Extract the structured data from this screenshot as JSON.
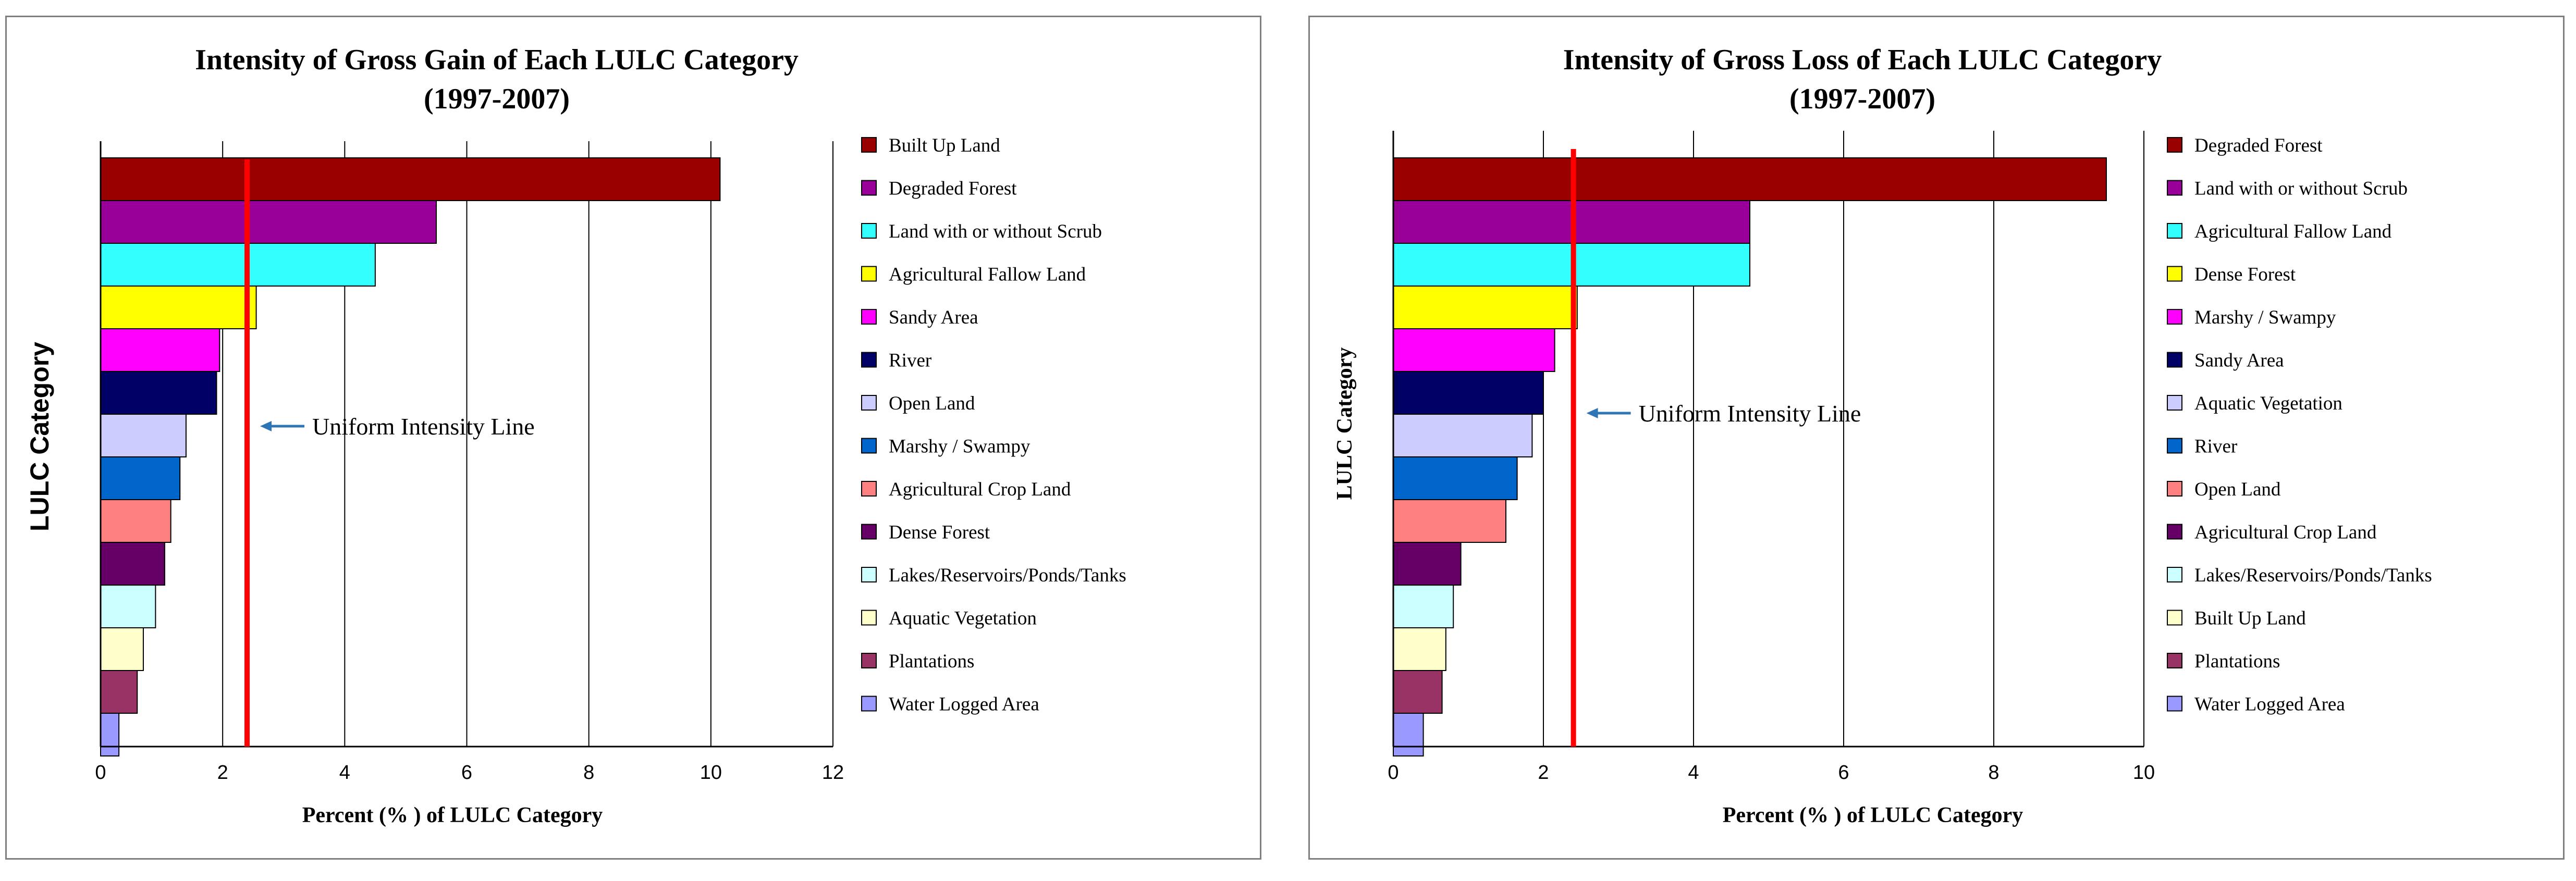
{
  "chart_data": [
    {
      "type": "bar",
      "orientation": "horizontal",
      "title": "Intensity of Gross Gain of Each LULC Category",
      "subtitle": "(1997-2007)",
      "xlabel": "Percent (% ) of LULC Category",
      "ylabel": "LULC Category",
      "xlim": [
        0,
        12
      ],
      "xticks": [
        "0",
        "2",
        "4",
        "6",
        "8",
        "10",
        "12"
      ],
      "uniform_intensity": 2.4,
      "annotation": "Uniform Intensity Line",
      "categories": [
        "Built Up Land",
        "Degraded Forest",
        "Land with or without Scrub",
        "Agricultural Fallow Land",
        "Sandy Area",
        "River",
        "Open Land",
        "Marshy / Swampy",
        "Agricultural Crop Land",
        "Dense Forest",
        "Lakes/Reservoirs/Ponds/Tanks",
        "Aquatic Vegetation",
        "Plantations",
        "Water Logged Area"
      ],
      "values": [
        10.15,
        5.5,
        4.5,
        2.55,
        1.95,
        1.9,
        1.4,
        1.3,
        1.15,
        1.05,
        0.9,
        0.7,
        0.6,
        0.3
      ],
      "colors": [
        "#990000",
        "#990099",
        "#33FFFF",
        "#FFFF00",
        "#FF00FF",
        "#000066",
        "#CCCCFF",
        "#0066CC",
        "#FF8080",
        "#660066",
        "#CCFFFF",
        "#FFFFCC",
        "#993366",
        "#9999FF"
      ],
      "grid": true,
      "legend": "right"
    },
    {
      "type": "bar",
      "orientation": "horizontal",
      "title": "Intensity of Gross Loss of Each LULC Category",
      "subtitle": "(1997-2007)",
      "xlabel": "Percent (% ) of LULC Category",
      "ylabel": "LULC Category",
      "xlim": [
        0,
        10
      ],
      "xticks": [
        "0",
        "2",
        "4",
        "6",
        "8",
        "10"
      ],
      "uniform_intensity": 2.4,
      "annotation": "Uniform Intensity Line",
      "categories": [
        "Degraded Forest",
        "Land with or without Scrub",
        "Agricultural Fallow Land",
        "Dense Forest",
        "Marshy / Swampy",
        "Sandy Area",
        "Aquatic Vegetation",
        "River",
        "Open Land",
        "Agricultural Crop Land",
        "Lakes/Reservoirs/Ponds/Tanks",
        "Built Up Land",
        "Plantations",
        "Water Logged Area"
      ],
      "values": [
        9.5,
        4.75,
        4.75,
        2.45,
        2.15,
        2.0,
        1.85,
        1.65,
        1.5,
        0.9,
        0.8,
        0.7,
        0.65,
        0.4
      ],
      "colors": [
        "#990000",
        "#990099",
        "#33FFFF",
        "#FFFF00",
        "#FF00FF",
        "#000066",
        "#CCCCFF",
        "#0066CC",
        "#FF8080",
        "#660066",
        "#CCFFFF",
        "#FFFFCC",
        "#993366",
        "#9999FF"
      ],
      "grid": true,
      "legend": "right"
    }
  ]
}
